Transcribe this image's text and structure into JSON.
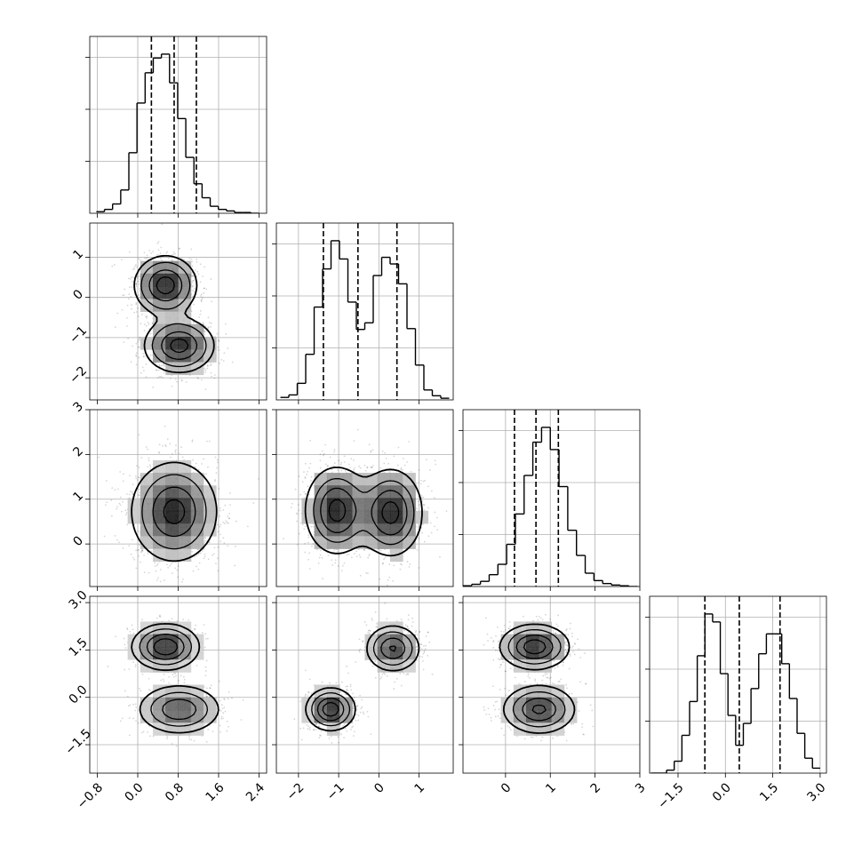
{
  "chart_data": {
    "type": "corner",
    "n_params": 4,
    "labels": [
      "",
      "",
      "",
      ""
    ],
    "grid": true,
    "axes": [
      {
        "lim": [
          -0.95,
          2.55
        ],
        "ticks": [
          -0.8,
          0.0,
          0.8,
          1.6,
          2.4
        ],
        "tick_labels": [
          "−0.8",
          "0.0",
          "0.8",
          "1.6",
          "2.4"
        ],
        "rotation": -45
      },
      {
        "lim": [
          -2.55,
          1.85
        ],
        "ticks": [
          -2,
          -1,
          0,
          1
        ],
        "tick_labels": [
          "−2",
          "−1",
          "0",
          "1"
        ],
        "rotation": -45
      },
      {
        "lim": [
          -0.95,
          3.0
        ],
        "ticks": [
          0,
          1,
          2,
          3
        ],
        "tick_labels": [
          "0",
          "1",
          "2",
          "3"
        ],
        "rotation": -45
      },
      {
        "lim": [
          -2.4,
          3.2
        ],
        "ticks": [
          -1.5,
          0.0,
          1.5,
          3.0
        ],
        "tick_labels": [
          "−1.5",
          "0.0",
          "1.5",
          "3.0"
        ],
        "rotation": -45
      }
    ],
    "histograms": [
      {
        "edges_range": [
          -0.82,
          2.4
        ],
        "counts": [
          2,
          5,
          12,
          30,
          78,
          142,
          181,
          200,
          205,
          168,
          122,
          72,
          38,
          20,
          9,
          5,
          3,
          1,
          1,
          0
        ],
        "quantiles": [
          0.27,
          0.72,
          1.16
        ]
      },
      {
        "edges_range": [
          -2.45,
          1.75
        ],
        "counts": [
          3,
          6,
          20,
          55,
          112,
          158,
          192,
          170,
          118,
          85,
          93,
          150,
          172,
          164,
          140,
          86,
          42,
          12,
          5,
          2
        ],
        "quantiles": [
          -1.38,
          -0.52,
          0.45
        ]
      },
      {
        "edges_range": [
          -0.95,
          2.95
        ],
        "counts": [
          1,
          3,
          7,
          16,
          30,
          57,
          98,
          150,
          195,
          215,
          185,
          135,
          76,
          42,
          18,
          8,
          4,
          2,
          1,
          0
        ],
        "quantiles": [
          0.2,
          0.68,
          1.18
        ]
      },
      {
        "edges_range": [
          -2.35,
          3.0
        ],
        "counts": [
          0,
          0,
          3,
          12,
          38,
          72,
          118,
          160,
          152,
          100,
          58,
          28,
          50,
          85,
          120,
          140,
          140,
          110,
          75,
          40,
          15,
          5
        ],
        "quantiles": [
          -0.65,
          0.44,
          1.73
        ]
      }
    ],
    "scatter": [
      {
        "row": 1,
        "col": 0,
        "modes": [
          {
            "mx": 0.55,
            "my": 0.3,
            "sx": 0.32,
            "sy": 0.38,
            "w": 0.5
          },
          {
            "mx": 0.82,
            "my": -1.2,
            "sx": 0.36,
            "sy": 0.35,
            "w": 0.5
          }
        ]
      },
      {
        "row": 2,
        "col": 0,
        "modes": [
          {
            "mx": 0.72,
            "my": 0.72,
            "sx": 0.42,
            "sy": 0.55,
            "w": 1.0
          }
        ]
      },
      {
        "row": 2,
        "col": 1,
        "modes": [
          {
            "mx": -1.05,
            "my": 0.75,
            "sx": 0.42,
            "sy": 0.52,
            "w": 0.5
          },
          {
            "mx": 0.3,
            "my": 0.7,
            "sx": 0.42,
            "sy": 0.52,
            "w": 0.5
          }
        ]
      },
      {
        "row": 3,
        "col": 0,
        "modes": [
          {
            "mx": 0.55,
            "my": 1.6,
            "sx": 0.32,
            "sy": 0.35,
            "w": 0.5
          },
          {
            "mx": 0.82,
            "my": -0.38,
            "sx": 0.4,
            "sy": 0.38,
            "w": 0.5
          }
        ]
      },
      {
        "row": 3,
        "col": 1,
        "modes": [
          {
            "mx": -1.2,
            "my": -0.38,
            "sx": 0.3,
            "sy": 0.33,
            "w": 0.5
          },
          {
            "mx": 0.35,
            "my": 1.55,
            "sx": 0.33,
            "sy": 0.36,
            "w": 0.5
          }
        ]
      },
      {
        "row": 3,
        "col": 2,
        "modes": [
          {
            "mx": 0.65,
            "my": 1.6,
            "sx": 0.38,
            "sy": 0.35,
            "w": 0.5
          },
          {
            "mx": 0.75,
            "my": -0.38,
            "sx": 0.4,
            "sy": 0.38,
            "w": 0.5
          }
        ]
      }
    ]
  }
}
